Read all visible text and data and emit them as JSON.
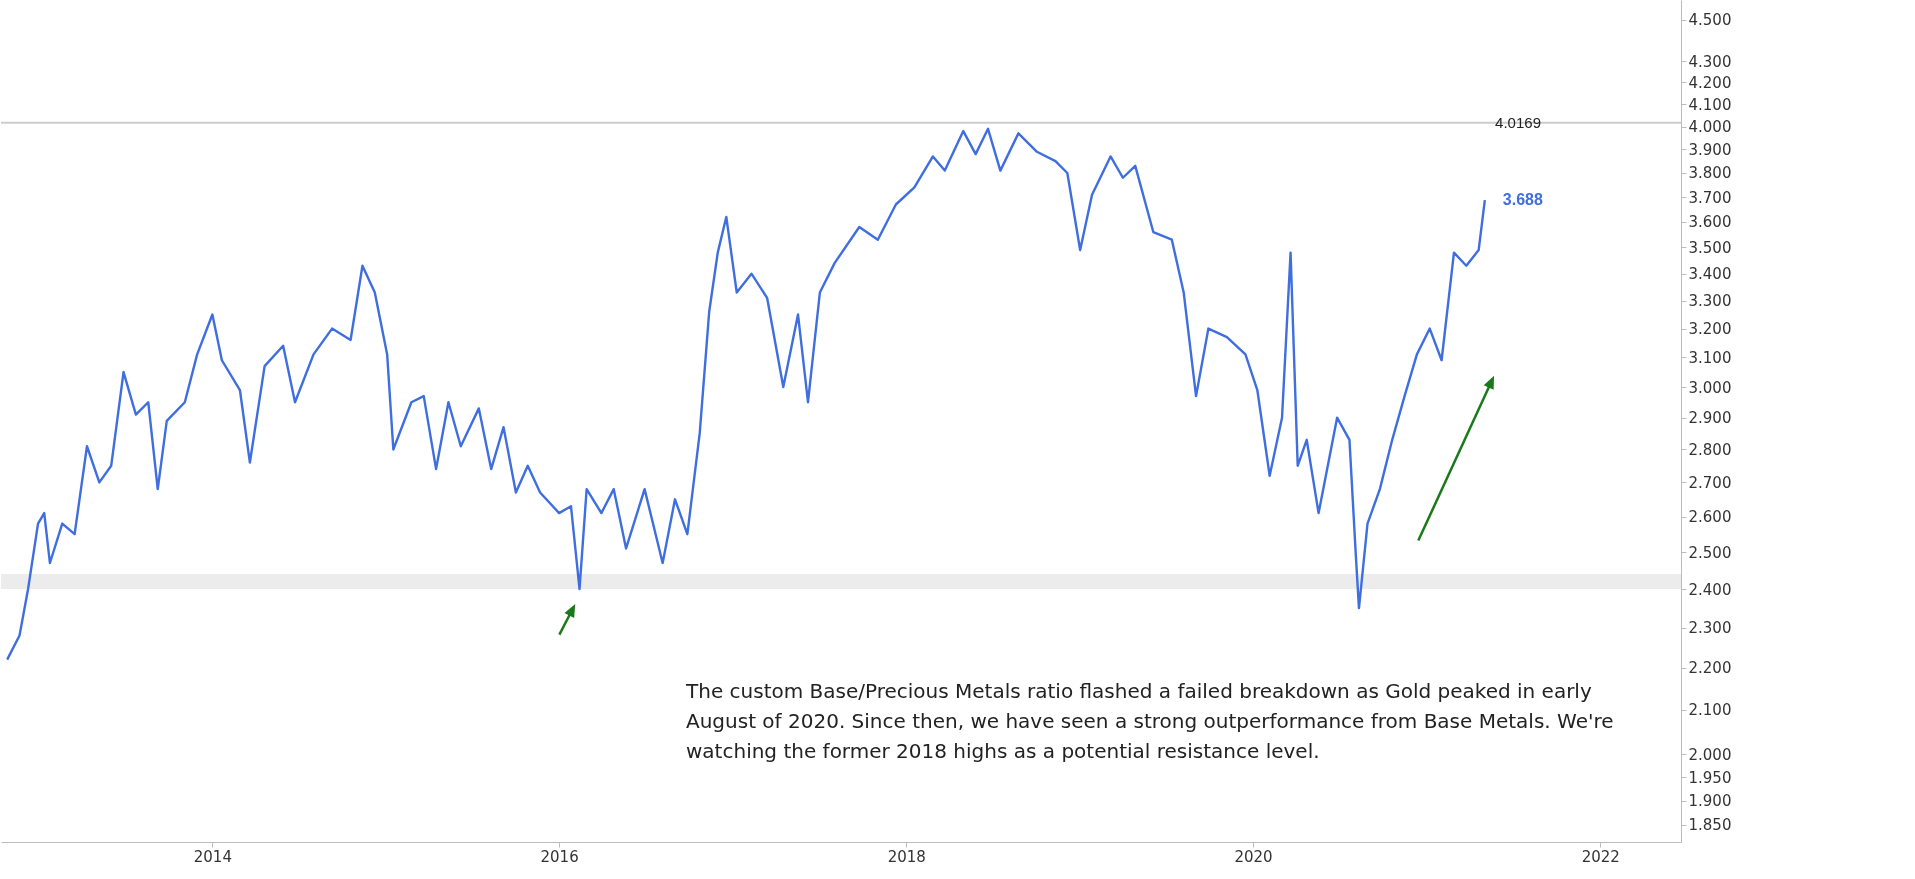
{
  "chart_data": {
    "type": "line",
    "log": "y",
    "xlim": [
      "2012-10-13",
      "2022-06-20"
    ],
    "ylim": [
      1.815,
      4.6
    ],
    "xticks": [
      "2014",
      "2016",
      "2018",
      "2020",
      "2022"
    ],
    "yticks": [
      {
        "value": 1.85,
        "label": "1.850"
      },
      {
        "value": 1.9,
        "label": "1.900"
      },
      {
        "value": 1.95,
        "label": "1.950"
      },
      {
        "value": 2,
        "label": "2.000"
      },
      {
        "value": 2.1,
        "label": "2.100"
      },
      {
        "value": 2.2,
        "label": "2.200"
      },
      {
        "value": 2.3,
        "label": "2.300"
      },
      {
        "value": 2.4,
        "label": "2.400"
      },
      {
        "value": 2.5,
        "label": "2.500"
      },
      {
        "value": 2.6,
        "label": "2.600"
      },
      {
        "value": 2.7,
        "label": "2.700"
      },
      {
        "value": 2.8,
        "label": "2.800"
      },
      {
        "value": 2.9,
        "label": "2.900"
      },
      {
        "value": 3,
        "label": "3.000"
      },
      {
        "value": 3.1,
        "label": "3.100"
      },
      {
        "value": 3.2,
        "label": "3.200"
      },
      {
        "value": 3.3,
        "label": "3.300"
      },
      {
        "value": 3.4,
        "label": "3.400"
      },
      {
        "value": 3.5,
        "label": "3.500"
      },
      {
        "value": 3.6,
        "label": "3.600"
      },
      {
        "value": 3.7,
        "label": "3.700"
      },
      {
        "value": 3.8,
        "label": "3.800"
      },
      {
        "value": 3.9,
        "label": "3.900"
      },
      {
        "value": 4,
        "label": "4.000"
      },
      {
        "value": 4.1,
        "label": "4.100"
      },
      {
        "value": 4.2,
        "label": "4.200"
      },
      {
        "value": 4.3,
        "label": "4.300"
      },
      {
        "value": 4.5,
        "label": "4.500"
      }
    ],
    "grid": false,
    "marker": "none",
    "line_style": "solid",
    "ref_lines": [
      {
        "axis": "y",
        "value": 4.0169,
        "label": "4.0169",
        "color": "#cccccc"
      }
    ],
    "bands": [
      {
        "axis": "y",
        "from": 2.4,
        "to": 2.44,
        "label": null,
        "color": "#ececec"
      }
    ],
    "annotations": [
      {
        "text": "3.688",
        "x": "2021-05-03",
        "y": 3.688
      },
      "The custom Base/Precious Metals ratio flashed a failed breakdown as Gold peaked in early August of 2020. Since then, we have seen a strong outperformance from Base Metals. We're watching the former 2018 highs as a potential resistance level."
    ],
    "series": [
      {
        "color": "#3f6ee0",
        "x": [
          "2012-10-26",
          "2012-11-21",
          "2012-12-09",
          "2012-12-30",
          "2013-01-12",
          "2013-01-24",
          "2013-02-19",
          "2013-03-17",
          "2013-04-12",
          "2013-05-08",
          "2013-06-02",
          "2013-06-28",
          "2013-07-24",
          "2013-08-19",
          "2013-09-08",
          "2013-09-27",
          "2013-11-04",
          "2013-11-30",
          "2014-01-01",
          "2014-01-21",
          "2014-02-28",
          "2014-03-21",
          "2014-04-21",
          "2014-05-30",
          "2014-06-24",
          "2014-08-02",
          "2014-09-10",
          "2014-10-19",
          "2014-11-13",
          "2014-12-09",
          "2015-01-04",
          "2015-01-17",
          "2015-02-24",
          "2015-03-22",
          "2015-04-17",
          "2015-05-13",
          "2015-06-08",
          "2015-07-16",
          "2015-08-11",
          "2015-09-06",
          "2015-10-02",
          "2015-10-27",
          "2015-11-22",
          "2016-01-01",
          "2016-01-26",
          "2016-02-13",
          "2016-02-28",
          "2016-03-30",
          "2016-04-25",
          "2016-05-21",
          "2016-06-29",
          "2016-08-06",
          "2016-09-01",
          "2016-09-27",
          "2016-10-23",
          "2016-11-12",
          "2016-11-30",
          "2016-12-18",
          "2017-01-09",
          "2017-02-09",
          "2017-03-14",
          "2017-04-17",
          "2017-05-18",
          "2017-06-08",
          "2017-07-03",
          "2017-08-03",
          "2017-09-24",
          "2017-11-02",
          "2017-12-10",
          "2018-01-18",
          "2018-02-26",
          "2018-03-23",
          "2018-05-01",
          "2018-05-27",
          "2018-06-22",
          "2018-07-18",
          "2018-08-25",
          "2018-10-03",
          "2018-11-11",
          "2018-12-06",
          "2019-01-02",
          "2019-01-27",
          "2019-03-07",
          "2019-04-02",
          "2019-04-28",
          "2019-06-05",
          "2019-07-14",
          "2019-08-08",
          "2019-09-03",
          "2019-09-29",
          "2019-11-07",
          "2019-12-16",
          "2020-01-10",
          "2020-02-05",
          "2020-03-02",
          "2020-03-20",
          "2020-04-04",
          "2020-04-23",
          "2020-05-18",
          "2020-06-26",
          "2020-07-22",
          "2020-08-04",
          "2020-08-11",
          "2020-08-29",
          "2020-09-24",
          "2020-10-20",
          "2020-11-15",
          "2020-12-11",
          "2021-01-07",
          "2021-02-01",
          "2021-02-27",
          "2021-03-25",
          "2021-04-20",
          "2021-05-03"
        ],
        "values": [
          2.22,
          2.28,
          2.4,
          2.58,
          2.61,
          2.47,
          2.58,
          2.55,
          2.81,
          2.7,
          2.75,
          3.05,
          2.91,
          2.95,
          2.68,
          2.89,
          2.95,
          3.11,
          3.25,
          3.09,
          2.99,
          2.76,
          3.07,
          3.14,
          2.95,
          3.11,
          3.2,
          3.16,
          3.43,
          3.33,
          3.11,
          2.8,
          2.95,
          2.97,
          2.74,
          2.95,
          2.81,
          2.93,
          2.74,
          2.87,
          2.67,
          2.75,
          2.67,
          2.61,
          2.63,
          2.4,
          2.68,
          2.61,
          2.68,
          2.51,
          2.68,
          2.47,
          2.65,
          2.55,
          2.85,
          3.26,
          3.48,
          3.62,
          3.33,
          3.4,
          3.31,
          3.0,
          3.25,
          2.95,
          3.33,
          3.44,
          3.58,
          3.53,
          3.67,
          3.74,
          3.87,
          3.81,
          3.98,
          3.88,
          3.99,
          3.81,
          3.97,
          3.89,
          3.85,
          3.8,
          3.49,
          3.71,
          3.87,
          3.78,
          3.83,
          3.56,
          3.53,
          3.33,
          2.97,
          3.2,
          3.17,
          3.11,
          2.99,
          2.72,
          2.9,
          3.48,
          2.75,
          2.83,
          2.61,
          2.9,
          2.83,
          2.5,
          2.35,
          2.58,
          2.68,
          2.83,
          2.97,
          3.11,
          3.2,
          3.09,
          3.48,
          3.43,
          3.49,
          3.688
        ]
      }
    ]
  }
}
